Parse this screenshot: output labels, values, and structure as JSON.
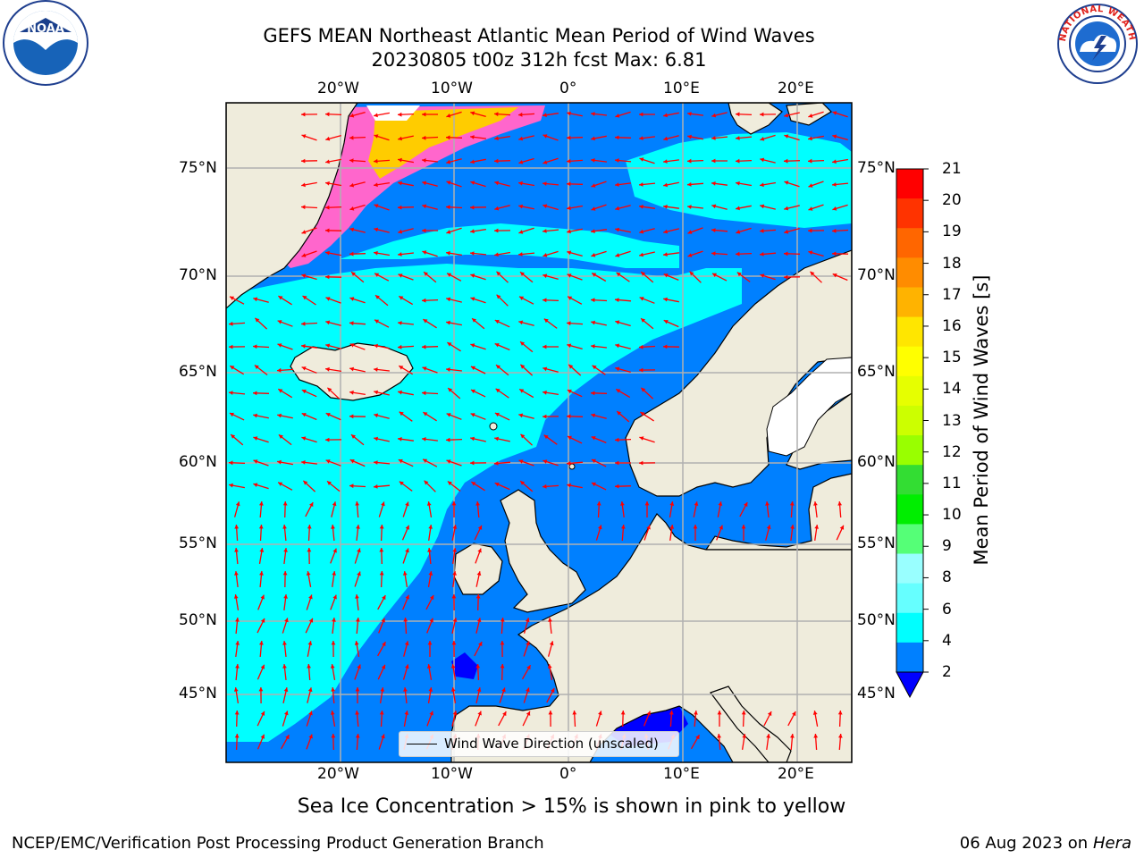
{
  "header": {
    "title_line1": "GEFS MEAN Northeast Atlantic Mean Period of Wind Waves",
    "title_line2": "20230805 t00z 312h fcst   Max: 6.81"
  },
  "logos": {
    "noaa": "NOAA",
    "nws_ring": "NATIONAL WEATHER SERVICE"
  },
  "map": {
    "lon_ticks": [
      "20°W",
      "10°W",
      "0°",
      "10°E",
      "20°E"
    ],
    "lat_ticks": [
      "75°N",
      "70°N",
      "65°N",
      "60°N",
      "55°N",
      "50°N",
      "45°N"
    ],
    "land_color": "#efecdc",
    "ocean_colors": {
      "lt2": "#0000ff",
      "2to4": "#0080ff",
      "4to6": "#00ffff",
      "6to8": "#40ffff",
      "ice": "#ff66cc"
    },
    "arrow_color": "#ff0000",
    "legend_label": "Wind Wave Direction (unscaled)"
  },
  "colorbar": {
    "label": "Mean Period of Wind Waves [s]",
    "ticks": [
      "21",
      "20",
      "19",
      "18",
      "17",
      "16",
      "15",
      "14",
      "13",
      "12",
      "11",
      "10",
      "9",
      "8",
      "6",
      "4",
      "2"
    ],
    "colors": [
      "#ff0000",
      "#ff3300",
      "#ff6600",
      "#ff8c00",
      "#ffb300",
      "#ffe600",
      "#ffff00",
      "#e6ff00",
      "#ccff00",
      "#99ff00",
      "#33dd33",
      "#00ee00",
      "#55ff77",
      "#99ffff",
      "#66ffff",
      "#00ffff",
      "#0080ff"
    ],
    "under_color": "#0000ff"
  },
  "note": "Sea Ice Concentration > 15% is shown in pink to yellow",
  "footer": {
    "left": "NCEP/EMC/Verification Post Processing Product Generation Branch",
    "right_date": "06 Aug 2023 on",
    "right_host": "Hera"
  }
}
